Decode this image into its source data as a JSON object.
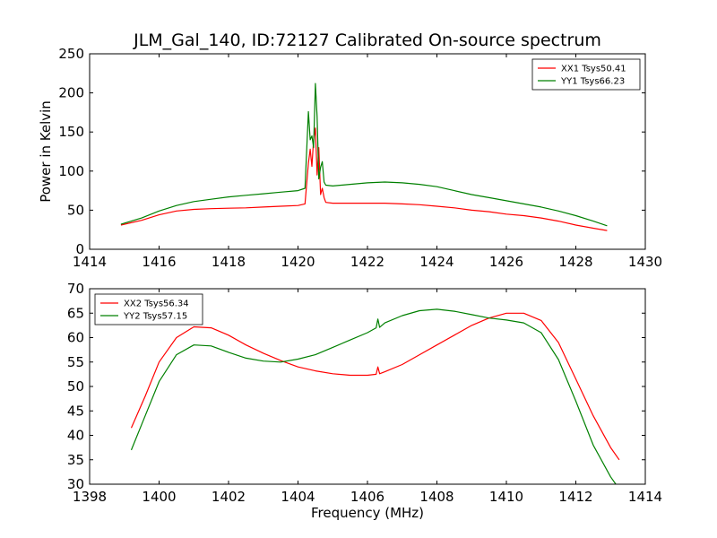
{
  "title": "JLM_Gal_140, ID:72127 Calibrated On-source spectrum",
  "chart_data": [
    {
      "type": "line",
      "title": "",
      "xlabel": "",
      "ylabel": "Power in Kelvin",
      "xlim": [
        1414,
        1430
      ],
      "ylim": [
        0,
        250
      ],
      "x_ticks": [
        "1414",
        "1416",
        "1418",
        "1420",
        "1422",
        "1424",
        "1426",
        "1428",
        "1430"
      ],
      "y_ticks": [
        "0",
        "50",
        "100",
        "150",
        "200",
        "250"
      ],
      "grid": false,
      "legend": "top-right",
      "series": [
        {
          "name": "XX1 Tsys50.41",
          "color": "#ff0000",
          "x": [
            1414.9,
            1415.5,
            1416.0,
            1416.5,
            1417.0,
            1417.5,
            1418.0,
            1418.5,
            1419.0,
            1419.5,
            1420.0,
            1420.2,
            1420.3,
            1420.35,
            1420.4,
            1420.45,
            1420.5,
            1420.55,
            1420.6,
            1420.65,
            1420.7,
            1420.75,
            1420.8,
            1421.0,
            1421.5,
            1422.0,
            1422.5,
            1423.0,
            1423.5,
            1424.0,
            1424.5,
            1425.0,
            1425.5,
            1426.0,
            1426.5,
            1427.0,
            1427.5,
            1428.0,
            1428.5,
            1428.9
          ],
          "values": [
            31,
            37,
            44,
            49,
            51,
            52,
            52.5,
            53,
            54,
            55,
            56,
            58,
            110,
            128,
            106,
            140,
            155,
            95,
            130,
            70,
            78,
            66,
            60,
            59,
            59,
            59,
            59,
            58,
            57,
            55,
            53,
            50,
            48,
            45,
            43,
            40,
            36,
            31,
            27,
            24
          ]
        },
        {
          "name": "YY1 Tsys66.23",
          "color": "#008000",
          "x": [
            1414.9,
            1415.5,
            1416.0,
            1416.5,
            1417.0,
            1417.5,
            1418.0,
            1418.5,
            1419.0,
            1419.5,
            1420.0,
            1420.2,
            1420.3,
            1420.35,
            1420.4,
            1420.45,
            1420.5,
            1420.55,
            1420.6,
            1420.65,
            1420.7,
            1420.75,
            1420.8,
            1421.0,
            1421.5,
            1422.0,
            1422.5,
            1423.0,
            1423.5,
            1424.0,
            1424.5,
            1425.0,
            1425.5,
            1426.0,
            1426.5,
            1427.0,
            1427.5,
            1428.0,
            1428.5,
            1428.9
          ],
          "values": [
            32,
            40,
            49,
            56,
            61,
            64,
            67,
            69,
            71,
            73,
            75,
            78,
            176,
            140,
            145,
            130,
            212,
            170,
            90,
            105,
            112,
            86,
            82,
            81,
            83,
            85,
            86,
            85,
            83,
            80,
            75,
            70,
            66,
            62,
            58,
            54,
            49,
            43,
            36,
            30
          ]
        }
      ]
    },
    {
      "type": "line",
      "title": "",
      "xlabel": "Frequency (MHz)",
      "ylabel": "",
      "xlim": [
        1398,
        1414
      ],
      "ylim": [
        30,
        70
      ],
      "x_ticks": [
        "1398",
        "1400",
        "1402",
        "1404",
        "1406",
        "1408",
        "1410",
        "1412",
        "1414"
      ],
      "y_ticks": [
        "30",
        "35",
        "40",
        "45",
        "50",
        "55",
        "60",
        "65",
        "70"
      ],
      "grid": false,
      "legend": "top-left",
      "series": [
        {
          "name": "XX2 Tsys56.34",
          "color": "#ff0000",
          "x": [
            1399.2,
            1399.6,
            1400.0,
            1400.5,
            1401.0,
            1401.5,
            1402.0,
            1402.5,
            1403.0,
            1403.5,
            1404.0,
            1404.5,
            1405.0,
            1405.5,
            1406.0,
            1406.25,
            1406.3,
            1406.35,
            1406.5,
            1407.0,
            1407.5,
            1408.0,
            1408.5,
            1409.0,
            1409.5,
            1410.0,
            1410.5,
            1411.0,
            1411.5,
            1412.0,
            1412.5,
            1413.0,
            1413.25
          ],
          "values": [
            41.5,
            48,
            55,
            60,
            62.2,
            62,
            60.5,
            58.5,
            56.8,
            55.3,
            54,
            53.2,
            52.6,
            52.3,
            52.3,
            52.5,
            54,
            52.6,
            53,
            54.5,
            56.5,
            58.5,
            60.5,
            62.5,
            64,
            65,
            65,
            63.5,
            59,
            51.5,
            44,
            37.5,
            35
          ]
        },
        {
          "name": "YY2 Tsys57.15",
          "color": "#008000",
          "x": [
            1399.2,
            1399.6,
            1400.0,
            1400.5,
            1401.0,
            1401.5,
            1402.0,
            1402.5,
            1403.0,
            1403.5,
            1404.0,
            1404.5,
            1405.0,
            1405.5,
            1406.0,
            1406.25,
            1406.3,
            1406.35,
            1406.5,
            1407.0,
            1407.5,
            1408.0,
            1408.5,
            1409.0,
            1409.5,
            1410.0,
            1410.5,
            1411.0,
            1411.5,
            1412.0,
            1412.5,
            1413.0,
            1413.15
          ],
          "values": [
            37,
            44,
            51,
            56.5,
            58.5,
            58.3,
            57,
            55.8,
            55.2,
            55,
            55.6,
            56.5,
            58,
            59.5,
            61,
            62,
            63.8,
            62.1,
            63,
            64.5,
            65.5,
            65.8,
            65.4,
            64.7,
            64,
            63.6,
            63,
            61,
            55.5,
            47,
            38,
            31.5,
            30
          ]
        }
      ]
    }
  ]
}
